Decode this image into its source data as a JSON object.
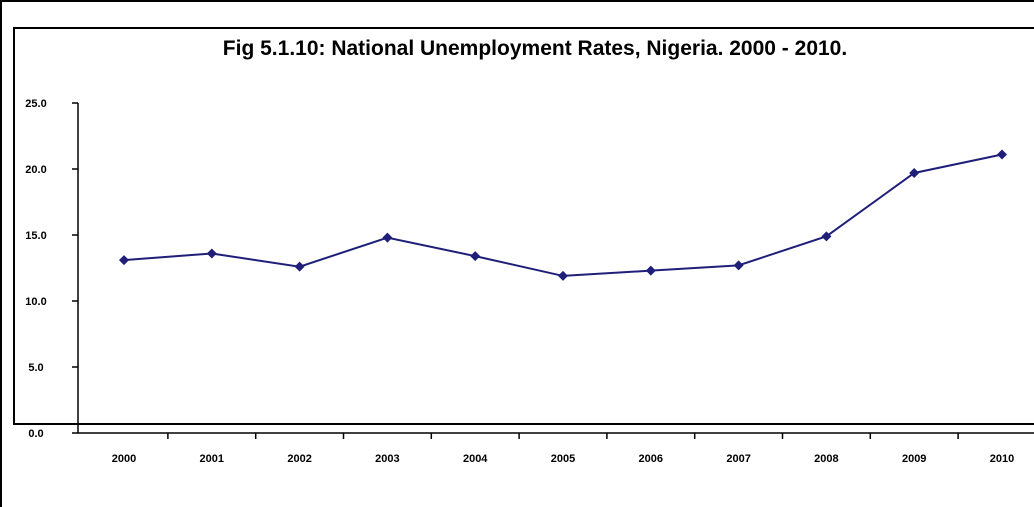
{
  "chart_data": {
    "type": "line",
    "title": "Fig 5.1.10: National Unemployment Rates, Nigeria. 2000 - 2010.",
    "xlabel": "",
    "ylabel": "",
    "categories": [
      "2000",
      "2001",
      "2002",
      "2003",
      "2004",
      "2005",
      "2006",
      "2007",
      "2008",
      "2009",
      "2010"
    ],
    "series": [
      {
        "values": [
          13.1,
          13.6,
          12.6,
          14.8,
          13.4,
          11.9,
          12.3,
          12.7,
          14.9,
          19.7,
          21.1
        ]
      }
    ],
    "ylim": [
      0,
      25
    ],
    "yticks": [
      "0.0",
      "5.0",
      "10.0",
      "15.0",
      "20.0",
      "25.0"
    ],
    "grid": false,
    "legend": "none",
    "line_color": "#1f1f7a"
  }
}
